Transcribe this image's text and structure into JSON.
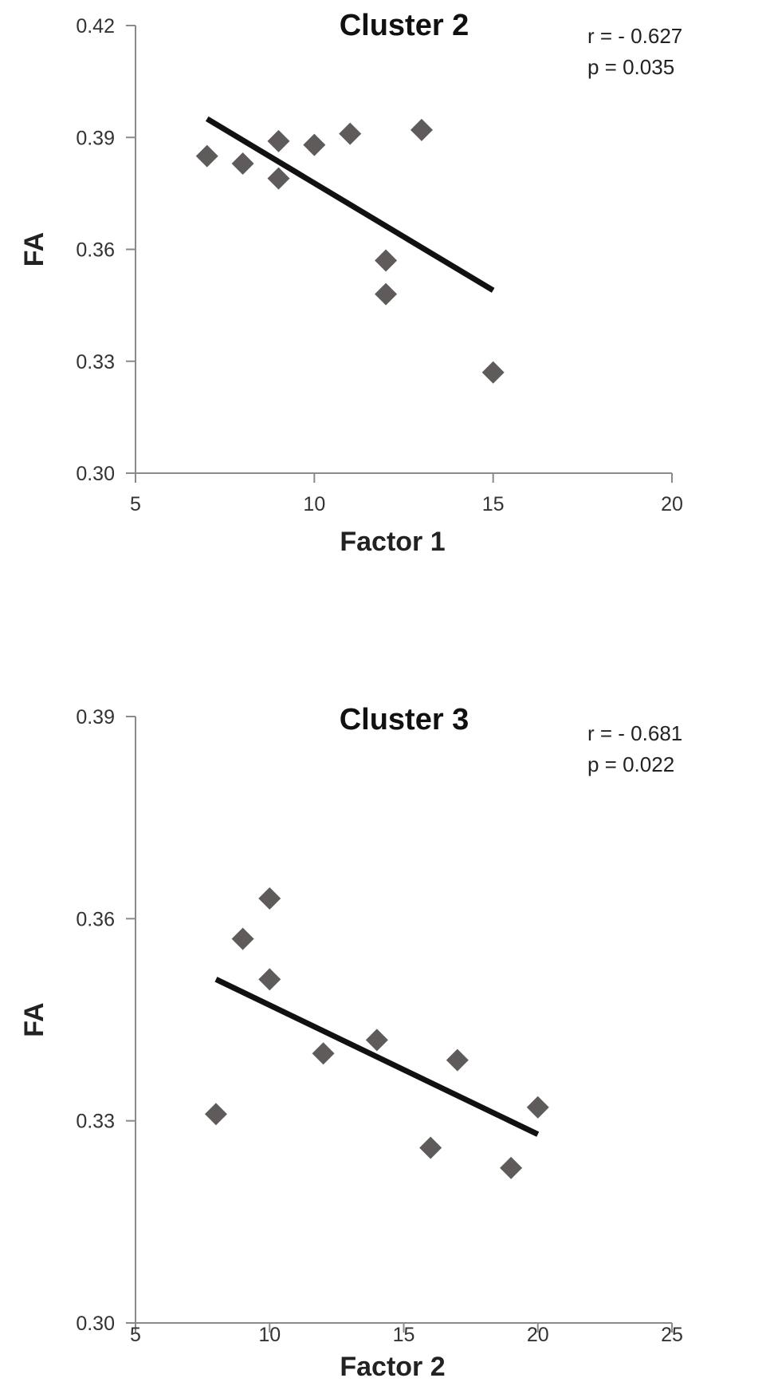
{
  "chart_data": [
    {
      "type": "scatter",
      "title": "Cluster 2",
      "xlabel": "Factor 1",
      "ylabel": "FA",
      "xlim": [
        5,
        20
      ],
      "ylim": [
        0.3,
        0.42
      ],
      "x_ticks": [
        "5",
        "10",
        "15",
        "20"
      ],
      "y_ticks": [
        "0.30",
        "0.33",
        "0.36",
        "0.39",
        "0.42"
      ],
      "stats": [
        "r = - 0.627",
        "p = 0.035"
      ],
      "grid": false,
      "legend": "none",
      "marker": "diamond",
      "marker_color": "#5f5b5b",
      "trend_color": "#111111",
      "points": [
        {
          "x": 7,
          "y": 0.385
        },
        {
          "x": 8,
          "y": 0.383
        },
        {
          "x": 9,
          "y": 0.389
        },
        {
          "x": 9,
          "y": 0.379
        },
        {
          "x": 10,
          "y": 0.388
        },
        {
          "x": 11,
          "y": 0.391
        },
        {
          "x": 13,
          "y": 0.392
        },
        {
          "x": 12,
          "y": 0.357
        },
        {
          "x": 12,
          "y": 0.348
        },
        {
          "x": 15,
          "y": 0.327
        }
      ],
      "trendline": {
        "x": [
          7,
          15
        ],
        "y": [
          0.395,
          0.349
        ]
      }
    },
    {
      "type": "scatter",
      "title": "Cluster 3",
      "xlabel": "Factor 2",
      "ylabel": "FA",
      "xlim": [
        5,
        25
      ],
      "ylim": [
        0.3,
        0.39
      ],
      "x_ticks": [
        "5",
        "10",
        "15",
        "20",
        "25"
      ],
      "y_ticks": [
        "0.30",
        "0.33",
        "0.36",
        "0.39"
      ],
      "stats": [
        "r = - 0.681",
        "p = 0.022"
      ],
      "grid": false,
      "legend": "none",
      "marker": "diamond",
      "marker_color": "#5f5b5b",
      "trend_color": "#111111",
      "points": [
        {
          "x": 8,
          "y": 0.331
        },
        {
          "x": 9,
          "y": 0.357
        },
        {
          "x": 10,
          "y": 0.363
        },
        {
          "x": 10,
          "y": 0.351
        },
        {
          "x": 12,
          "y": 0.34
        },
        {
          "x": 14,
          "y": 0.342
        },
        {
          "x": 16,
          "y": 0.326
        },
        {
          "x": 17,
          "y": 0.339
        },
        {
          "x": 19,
          "y": 0.323
        },
        {
          "x": 20,
          "y": 0.332
        }
      ],
      "trendline": {
        "x": [
          8,
          20
        ],
        "y": [
          0.351,
          0.328
        ]
      }
    }
  ]
}
